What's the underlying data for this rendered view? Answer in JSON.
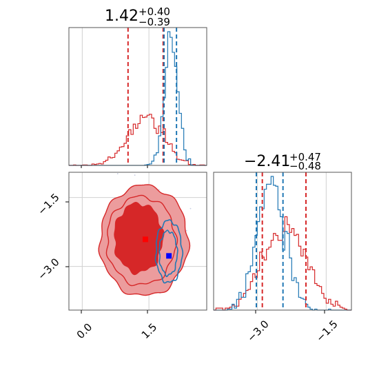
{
  "colors": {
    "red": "#d62728",
    "blue": "#1f77b4",
    "red_fill_light": "#ec9c9d",
    "red_fill_dark": "#d62728",
    "blue_marker": "#0000ff"
  },
  "chart_data": [
    {
      "type": "histogram",
      "panel": "top-left",
      "title": {
        "value": "1.42",
        "plus": "+0.40",
        "minus": "−0.39"
      },
      "xlim": [
        -0.3,
        2.8
      ],
      "xticks": [
        0.0,
        1.5
      ],
      "series": [
        {
          "color": "red",
          "center": 1.42,
          "sigma": 0.4,
          "n_points": 2000
        },
        {
          "color": "blue",
          "center": 2.0,
          "sigma": 0.15,
          "n_points": 2000
        }
      ],
      "quantile_lines": [
        {
          "color": "red",
          "x": 1.03
        },
        {
          "color": "red",
          "x": 1.82
        },
        {
          "color": "blue",
          "x": 1.84
        },
        {
          "color": "blue",
          "x": 2.12
        }
      ]
    },
    {
      "type": "contour",
      "panel": "bottom-left",
      "xlim": [
        -0.3,
        2.8
      ],
      "ylim": [
        -3.95,
        -0.95
      ],
      "xticks": [
        0.0,
        1.5
      ],
      "yticks": [
        -1.5,
        -3.0
      ],
      "xtick_labels": [
        "0.0",
        "1.5"
      ],
      "ytick_labels": [
        "−1.5",
        "−3.0"
      ],
      "markers": [
        {
          "color": "red",
          "x": 1.42,
          "y": -2.41
        },
        {
          "color": "blue",
          "x": 1.95,
          "y": -2.77
        }
      ]
    },
    {
      "type": "histogram",
      "panel": "bottom-right",
      "title": {
        "value": "−2.41",
        "plus": "+0.47",
        "minus": "−0.48"
      },
      "xlim": [
        -3.95,
        -0.95
      ],
      "xticks": [
        -3.0,
        -1.5
      ],
      "xtick_labels": [
        "−3.0",
        "−1.5"
      ],
      "series": [
        {
          "color": "red",
          "center": -2.41,
          "sigma": 0.47,
          "n_points": 2000
        },
        {
          "color": "blue",
          "center": -2.7,
          "sigma": 0.3,
          "n_points": 2000
        }
      ],
      "quantile_lines": [
        {
          "color": "red",
          "x": -2.89
        },
        {
          "color": "red",
          "x": -1.94
        },
        {
          "color": "blue",
          "x": -3.02
        },
        {
          "color": "blue",
          "x": -2.44
        }
      ]
    }
  ]
}
